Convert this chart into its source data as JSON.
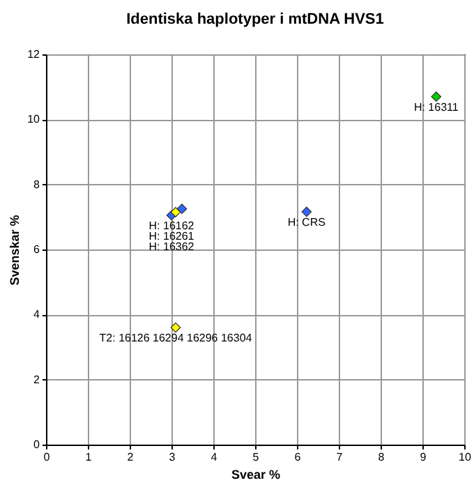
{
  "chart_data": {
    "type": "scatter",
    "title": "Identiska haplotyper i mtDNA HVS1",
    "xlabel": "Svear %",
    "ylabel": "Svenskar %",
    "x": [
      3.0,
      3.1,
      3.25,
      6.23,
      9.33,
      3.1
    ],
    "values": [
      7.05,
      7.15,
      7.25,
      7.16,
      10.7,
      3.6
    ],
    "colors": [
      "#3366ff",
      "#ffff00",
      "#3366ff",
      "#3366ff",
      "#00cc00",
      "#ffff00"
    ],
    "marker": "diamond",
    "xlim": [
      0,
      10
    ],
    "xticks": [
      0,
      1,
      2,
      3,
      4,
      5,
      6,
      7,
      8,
      9,
      10
    ],
    "ylim": [
      0,
      12
    ],
    "yticks": [
      0,
      2,
      4,
      6,
      8,
      10,
      12
    ],
    "grid": true,
    "annotations": [
      {
        "text": "H: 16162",
        "x": 3.0,
        "y": 7.05
      },
      {
        "text": "H: 16261",
        "x": 3.1,
        "y": 7.15
      },
      {
        "text": "H: 16362",
        "x": 3.25,
        "y": 7.25
      },
      {
        "text": "H: CRS",
        "x": 6.23,
        "y": 7.16
      },
      {
        "text": "H: 16311",
        "x": 9.33,
        "y": 10.7
      },
      {
        "text": "T2: 16126 16294 16296 16304",
        "x": 3.1,
        "y": 3.6
      }
    ]
  }
}
